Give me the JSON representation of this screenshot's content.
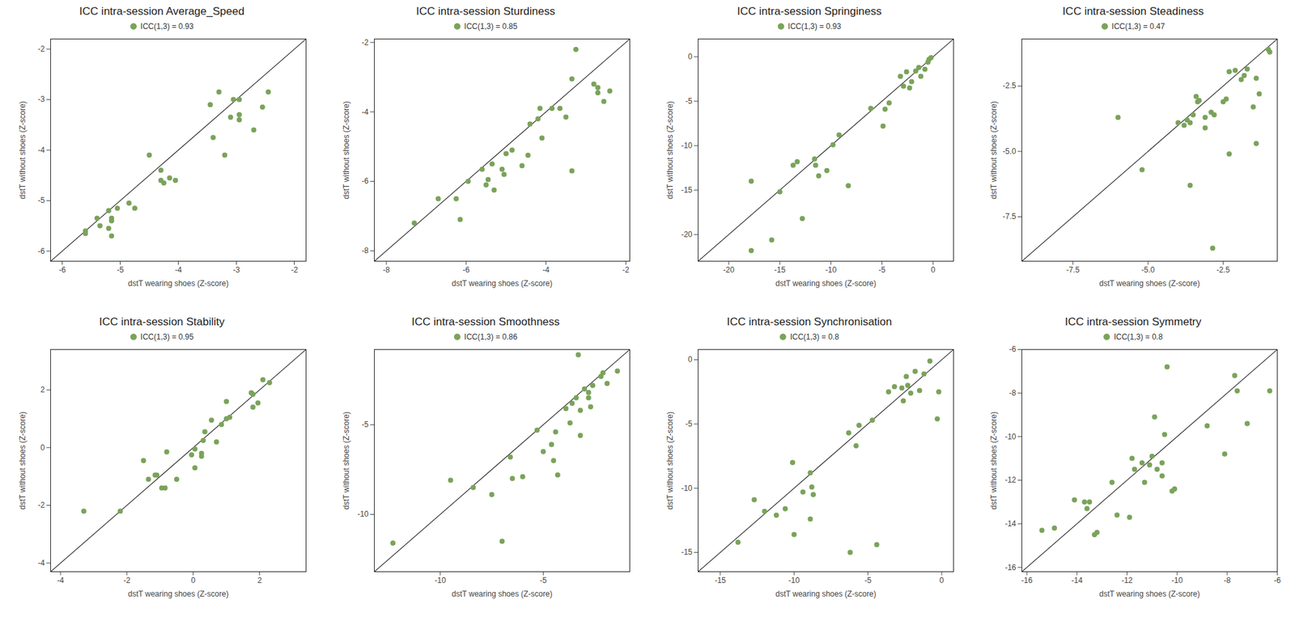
{
  "chart_data": [
    {
      "type": "scatter",
      "title": "ICC intra-session Average_Speed",
      "x_label": "dstT wearing shoes (Z-score)",
      "y_label": "dstT without shoes (Z-score)",
      "legend": "top",
      "xlim": [
        -6.2,
        -1.8
      ],
      "ylim": [
        -6.2,
        -1.8
      ],
      "xticks": [
        -6,
        -5,
        -4,
        -3,
        -2
      ],
      "yticks": [
        -6,
        -5,
        -4,
        -3,
        -2
      ],
      "series": [
        {
          "name": "ICC(1,3) = 0.93",
          "color": "#7aa35a",
          "x": [
            -5.6,
            -5.6,
            -5.4,
            -5.35,
            -5.2,
            -5.15,
            -5.15,
            -5.2,
            -5.15,
            -5.05,
            -4.85,
            -4.75,
            -4.5,
            -4.3,
            -4.3,
            -4.25,
            -4.15,
            -4.05,
            -3.45,
            -3.4,
            -3.3,
            -3.2,
            -3.1,
            -3.05,
            -2.95,
            -2.95,
            -2.95,
            -2.7,
            -2.55,
            -2.45
          ],
          "y": [
            -5.6,
            -5.65,
            -5.35,
            -5.5,
            -5.2,
            -5.4,
            -5.35,
            -5.55,
            -5.7,
            -5.15,
            -5.05,
            -5.15,
            -4.1,
            -4.4,
            -4.6,
            -4.65,
            -4.55,
            -4.6,
            -3.1,
            -3.75,
            -2.85,
            -4.1,
            -3.35,
            -3.0,
            -3.0,
            -3.3,
            -3.4,
            -3.6,
            -3.15,
            -2.85
          ]
        }
      ]
    },
    {
      "type": "scatter",
      "title": "ICC intra-session Sturdiness",
      "x_label": "dstT wearing shoes (Z-score)",
      "y_label": "dstT without shoes (Z-score)",
      "legend": "top",
      "xlim": [
        -8.3,
        -1.9
      ],
      "ylim": [
        -8.3,
        -1.9
      ],
      "xticks": [
        -8,
        -6,
        -4,
        -2
      ],
      "yticks": [
        -8,
        -6,
        -4,
        -2
      ],
      "series": [
        {
          "name": "ICC(1,3) = 0.85",
          "color": "#7aa35a",
          "x": [
            -7.3,
            -6.7,
            -6.25,
            -6.15,
            -5.95,
            -5.6,
            -5.5,
            -5.45,
            -5.35,
            -5.3,
            -5.1,
            -5.05,
            -5.0,
            -4.85,
            -4.6,
            -4.45,
            -4.4,
            -4.2,
            -4.15,
            -4.1,
            -3.85,
            -3.65,
            -3.5,
            -3.35,
            -3.35,
            -3.25,
            -2.8,
            -2.7,
            -2.7,
            -2.55,
            -2.4
          ],
          "y": [
            -7.2,
            -6.5,
            -6.5,
            -7.1,
            -6.0,
            -5.65,
            -6.1,
            -5.95,
            -5.5,
            -6.25,
            -5.65,
            -5.8,
            -5.2,
            -5.1,
            -5.55,
            -5.25,
            -4.35,
            -4.2,
            -3.9,
            -4.75,
            -3.9,
            -3.9,
            -4.15,
            -3.05,
            -5.7,
            -2.2,
            -3.2,
            -3.3,
            -3.45,
            -3.7,
            -3.4
          ]
        }
      ]
    },
    {
      "type": "scatter",
      "title": "ICC intra-session Springiness",
      "x_label": "dstT wearing shoes (Z-score)",
      "y_label": "dstT without shoes (Z-score)",
      "legend": "top",
      "xlim": [
        -23,
        2
      ],
      "ylim": [
        -23,
        2
      ],
      "xticks": [
        -20,
        -15,
        -10,
        -5,
        0
      ],
      "yticks": [
        -20,
        -15,
        -10,
        -5,
        0
      ],
      "series": [
        {
          "name": "ICC(1,3) = 0.93",
          "color": "#7aa35a",
          "x": [
            -17.8,
            -17.8,
            -15.8,
            -15,
            -13.7,
            -13.3,
            -12.8,
            -11.6,
            -11.5,
            -11.2,
            -10.4,
            -9.8,
            -9.2,
            -8.3,
            -6.1,
            -4.9,
            -4.7,
            -4.3,
            -3.2,
            -2.9,
            -2.6,
            -2.3,
            -2.1,
            -1.7,
            -1.4,
            -1.2,
            -0.8,
            -0.5,
            -0.4,
            -0.2
          ],
          "y": [
            -14,
            -21.8,
            -20.6,
            -15.2,
            -12.2,
            -11.8,
            -18.2,
            -11.5,
            -12.2,
            -13.4,
            -12.8,
            -9.9,
            -8.8,
            -14.5,
            -5.8,
            -7.8,
            -5.9,
            -5.2,
            -2.2,
            -3.3,
            -1.7,
            -3.5,
            -2.8,
            -1.6,
            -1.2,
            -2.2,
            -1.4,
            -0.6,
            -0.3,
            -0.1
          ]
        }
      ]
    },
    {
      "type": "scatter",
      "title": "ICC intra-session Steadiness",
      "x_label": "dstT wearing shoes (Z-score)",
      "y_label": "dstT without shoes (Z-score)",
      "legend": "top",
      "xlim": [
        -9.2,
        -0.7
      ],
      "ylim": [
        -9.2,
        -0.7
      ],
      "xticks": [
        -7.5,
        {
          "value": -5,
          "label": "-5.0"
        },
        -2.5
      ],
      "yticks": [
        -7.5,
        {
          "value": -5,
          "label": "-5.0"
        },
        -2.5
      ],
      "series": [
        {
          "name": "ICC(1,3) = 0.47",
          "color": "#7aa35a",
          "x": [
            -6.0,
            -5.2,
            -4.0,
            -3.8,
            -3.7,
            -3.6,
            -3.5,
            -3.6,
            -3.4,
            -3.35,
            -3.3,
            -3.1,
            -3.1,
            -2.9,
            -2.85,
            -2.8,
            -2.5,
            -2.4,
            -2.3,
            -2.3,
            -2.1,
            -1.9,
            -1.8,
            -1.7,
            -1.5,
            -1.4,
            -1.4,
            -1.3,
            -1.0,
            -0.95
          ],
          "y": [
            -3.7,
            -5.7,
            -3.9,
            -4.0,
            -3.8,
            -3.9,
            -3.6,
            -6.3,
            -2.9,
            -3.1,
            -3.05,
            -3.7,
            -4.1,
            -3.5,
            -8.7,
            -3.6,
            -3.1,
            -3.0,
            -5.1,
            -1.95,
            -1.9,
            -2.25,
            -2.1,
            -1.85,
            -3.3,
            -2.2,
            -4.7,
            -2.8,
            -1.1,
            -1.2
          ]
        }
      ]
    },
    {
      "type": "scatter",
      "title": "ICC intra-session Stability",
      "x_label": "dstT wearing shoes (Z-score)",
      "y_label": "dstT without shoes (Z-score)",
      "legend": "top",
      "xlim": [
        -4.3,
        3.4
      ],
      "ylim": [
        -4.3,
        3.4
      ],
      "xticks": [
        -4,
        -2,
        0,
        2
      ],
      "yticks": [
        -4,
        -2,
        0,
        2
      ],
      "series": [
        {
          "name": "ICC(1,3) = 0.95",
          "color": "#7aa35a",
          "x": [
            -3.3,
            -2.2,
            -1.5,
            -1.35,
            -1.15,
            -1.1,
            -0.95,
            -0.85,
            -0.8,
            -0.5,
            -0.05,
            0.05,
            0.05,
            0.25,
            0.25,
            0.3,
            0.35,
            0.55,
            0.7,
            0.85,
            1.0,
            1.0,
            1.1,
            1.75,
            1.8,
            1.8,
            1.95,
            2.1,
            2.3
          ],
          "y": [
            -2.2,
            -2.2,
            -0.45,
            -1.1,
            -0.95,
            -0.95,
            -1.4,
            -1.4,
            -0.15,
            -1.1,
            -0.25,
            -0.7,
            -0.05,
            -0.2,
            -0.3,
            0.25,
            0.55,
            0.95,
            0.2,
            0.8,
            1.6,
            1.0,
            1.05,
            1.9,
            1.4,
            1.85,
            1.55,
            2.35,
            2.25
          ]
        }
      ]
    },
    {
      "type": "scatter",
      "title": "ICC intra-session Smoothness",
      "x_label": "dstT wearing shoes (Z-score)",
      "y_label": "dstT without shoes (Z-score)",
      "legend": "top",
      "xlim": [
        -13.2,
        -0.8
      ],
      "ylim": [
        -13.2,
        -0.8
      ],
      "xticks": [
        -10,
        -5
      ],
      "yticks": [
        -10,
        -5
      ],
      "series": [
        {
          "name": "ICC(1,3) = 0.86",
          "color": "#7aa35a",
          "x": [
            -12.3,
            -9.5,
            -8.4,
            -7.5,
            -7,
            -6.6,
            -6.5,
            -6.0,
            -5.3,
            -5.0,
            -4.6,
            -4.5,
            -4.4,
            -4.3,
            -3.9,
            -3.7,
            -3.6,
            -3.4,
            -3.3,
            -3.2,
            -3.2,
            -3.0,
            -2.8,
            -2.8,
            -2.7,
            -2.6,
            -2.2,
            -2.1,
            -1.9,
            -1.4
          ],
          "y": [
            -11.6,
            -8.1,
            -8.5,
            -8.9,
            -11.5,
            -6.8,
            -8.0,
            -7.9,
            -5.3,
            -6.5,
            -6.1,
            -7.0,
            -5.4,
            -7.8,
            -4.1,
            -4.9,
            -3.8,
            -3.5,
            -1.1,
            -4.2,
            -5.6,
            -3.0,
            -3.2,
            -3.5,
            -4.0,
            -2.8,
            -2.3,
            -2.1,
            -2.7,
            -2.0
          ]
        }
      ]
    },
    {
      "type": "scatter",
      "title": "ICC intra-session Synchronisation",
      "x_label": "dstT wearing shoes (Z-score)",
      "y_label": "dstT without shoes (Z-score)",
      "legend": "top",
      "xlim": [
        -16.5,
        0.8
      ],
      "ylim": [
        -16.5,
        0.8
      ],
      "xticks": [
        -15,
        -10,
        -5,
        0
      ],
      "yticks": [
        -15,
        -10,
        -5,
        0
      ],
      "series": [
        {
          "name": "ICC(1,3) = 0.8",
          "color": "#7aa35a",
          "x": [
            -13.8,
            -12.7,
            -12.0,
            -11.2,
            -10.6,
            -10.1,
            -10.0,
            -9.4,
            -8.9,
            -8.9,
            -8.8,
            -8.7,
            -6.3,
            -6.2,
            -5.8,
            -5.6,
            -4.7,
            -4.4,
            -3.6,
            -3.2,
            -2.7,
            -2.6,
            -2.4,
            -2.3,
            -2.1,
            -1.8,
            -1.5,
            -1.2,
            -0.8,
            -0.2,
            -0.3
          ],
          "y": [
            -14.2,
            -10.9,
            -11.8,
            -12.1,
            -11.6,
            -8.0,
            -13.6,
            -10.3,
            -8.8,
            -12.4,
            -9.9,
            -10.5,
            -5.7,
            -15.0,
            -6.7,
            -5.1,
            -4.7,
            -14.4,
            -2.5,
            -2.1,
            -2.2,
            -3.2,
            -1.3,
            -2.0,
            -2.6,
            -0.9,
            -2.4,
            -1.1,
            -0.1,
            -2.5,
            -4.6
          ]
        }
      ]
    },
    {
      "type": "scatter",
      "title": "ICC intra-session Symmetry",
      "x_label": "dstT wearing shoes (Z-score)",
      "y_label": "dstT without shoes (Z-score)",
      "legend": "top",
      "xlim": [
        -16.2,
        -6
      ],
      "ylim": [
        -16.2,
        -6
      ],
      "xticks": [
        -16,
        -14,
        -12,
        -10,
        -8,
        -6
      ],
      "yticks": [
        -16,
        -14,
        -12,
        -10,
        -8,
        -6
      ],
      "series": [
        {
          "name": "ICC(1,3) = 0.8",
          "color": "#7aa35a",
          "x": [
            -15.4,
            -14.9,
            -14.1,
            -13.7,
            -13.6,
            -13.5,
            -13.3,
            -13.2,
            -12.6,
            -12.4,
            -11.9,
            -11.8,
            -11.7,
            -11.4,
            -11.3,
            -11.1,
            -11.0,
            -10.9,
            -10.8,
            -10.6,
            -10.6,
            -10.5,
            -10.4,
            -10.2,
            -10.1,
            -8.8,
            -8.1,
            -7.7,
            -7.6,
            -7.2,
            -6.3
          ],
          "y": [
            -14.3,
            -14.2,
            -12.9,
            -13.0,
            -13.3,
            -13.0,
            -14.5,
            -14.4,
            -12.1,
            -13.6,
            -13.7,
            -11.0,
            -11.5,
            -11.2,
            -12.1,
            -11.3,
            -10.9,
            -9.1,
            -11.5,
            -11.8,
            -11.2,
            -9.9,
            -6.8,
            -12.5,
            -12.4,
            -9.5,
            -10.8,
            -7.2,
            -7.9,
            -9.4,
            -7.9
          ]
        }
      ]
    }
  ]
}
